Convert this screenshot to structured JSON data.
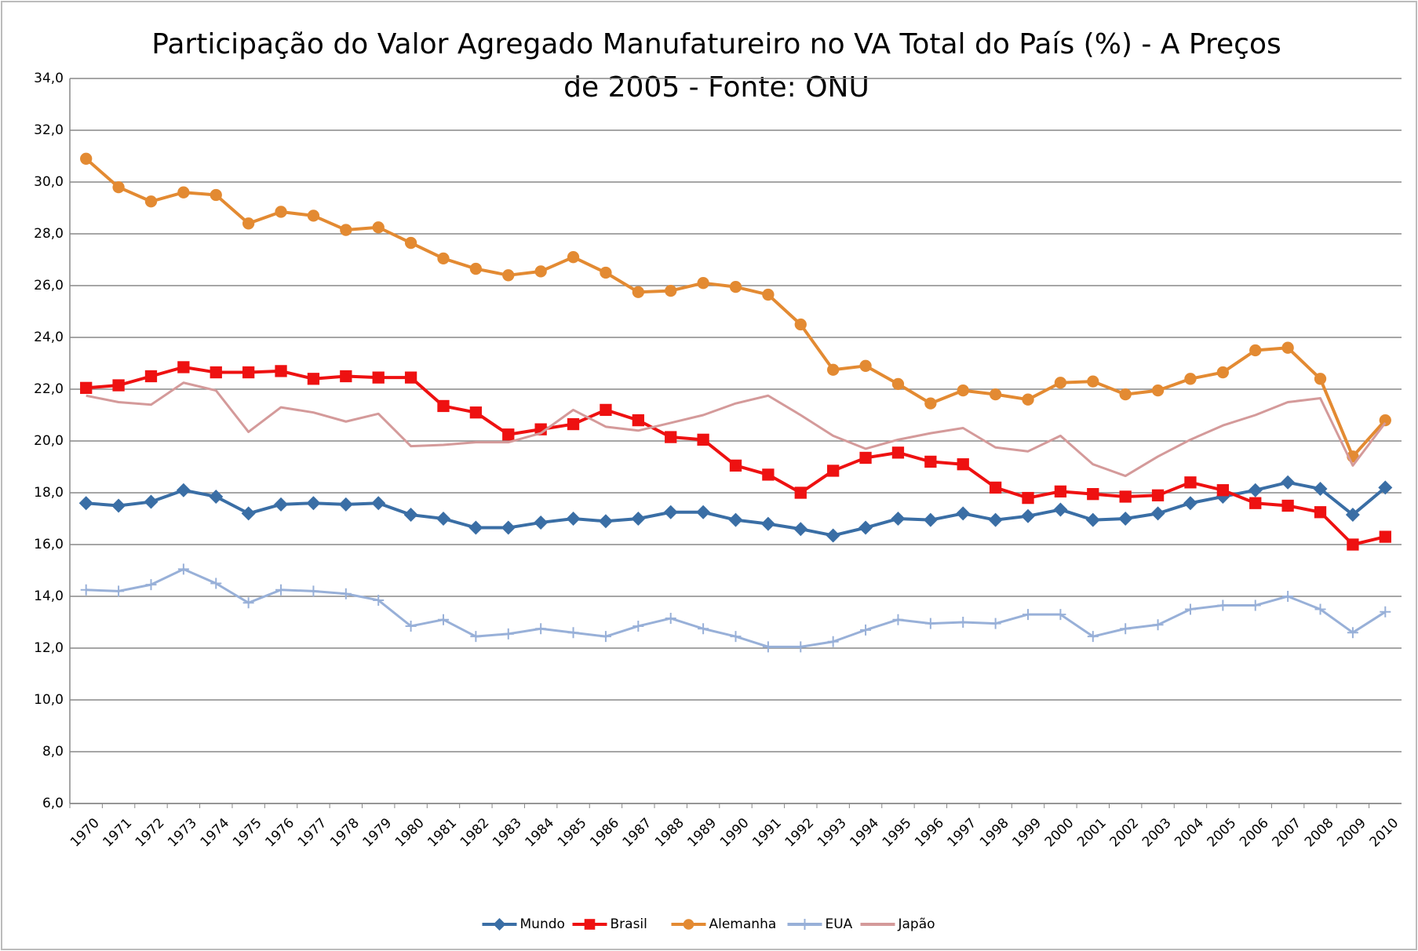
{
  "chart_data": {
    "type": "line",
    "title": [
      "Participação do Valor Agregado Manufatureiro no VA Total do País (%) - A Preços",
      "de 2005 - Fonte: ONU"
    ],
    "categories": [
      "1970",
      "1971",
      "1972",
      "1973",
      "1974",
      "1975",
      "1976",
      "1977",
      "1978",
      "1979",
      "1980",
      "1981",
      "1982",
      "1983",
      "1984",
      "1985",
      "1986",
      "1987",
      "1988",
      "1989",
      "1990",
      "1991",
      "1992",
      "1993",
      "1994",
      "1995",
      "1996",
      "1997",
      "1998",
      "1999",
      "2000",
      "2001",
      "2002",
      "2003",
      "2004",
      "2005",
      "2006",
      "2007",
      "2008",
      "2009",
      "2010"
    ],
    "series": [
      {
        "name": "Mundo",
        "color": "#3a6ea5",
        "marker": "diamond",
        "values": [
          17.6,
          17.5,
          17.65,
          18.1,
          17.85,
          17.2,
          17.55,
          17.6,
          17.55,
          17.6,
          17.15,
          17.0,
          16.65,
          16.65,
          16.85,
          17.0,
          16.9,
          17.0,
          17.25,
          17.25,
          16.95,
          16.8,
          16.6,
          16.35,
          16.65,
          17.0,
          16.95,
          17.2,
          16.95,
          17.1,
          17.35,
          16.95,
          17.0,
          17.2,
          17.6,
          17.85,
          18.1,
          18.4,
          18.15,
          17.15,
          18.2
        ]
      },
      {
        "name": "Brasil",
        "color": "#ee1111",
        "marker": "square",
        "values": [
          22.05,
          22.15,
          22.5,
          22.85,
          22.65,
          22.65,
          22.7,
          22.4,
          22.5,
          22.45,
          22.45,
          21.35,
          21.1,
          20.25,
          20.45,
          20.65,
          21.2,
          20.8,
          20.15,
          20.05,
          19.05,
          18.7,
          18.0,
          18.85,
          19.35,
          19.55,
          19.2,
          19.1,
          18.2,
          17.8,
          18.05,
          17.95,
          17.85,
          17.9,
          18.4,
          18.1,
          17.6,
          17.5,
          17.25,
          16.0,
          16.3
        ]
      },
      {
        "name": "Alemanha",
        "color": "#e38a32",
        "marker": "circle",
        "values": [
          30.9,
          29.8,
          29.25,
          29.6,
          29.5,
          28.4,
          28.85,
          28.7,
          28.15,
          28.25,
          27.65,
          27.05,
          26.65,
          26.4,
          26.55,
          27.1,
          26.5,
          25.75,
          25.8,
          26.1,
          25.95,
          25.65,
          24.5,
          22.75,
          22.9,
          22.2,
          21.45,
          21.95,
          21.8,
          21.6,
          22.25,
          22.3,
          21.8,
          21.95,
          22.4,
          22.65,
          23.5,
          23.6,
          22.4,
          19.4,
          20.8
        ]
      },
      {
        "name": "EUA",
        "color": "#98b0d8",
        "marker": "plus",
        "values": [
          14.25,
          14.2,
          14.45,
          15.05,
          14.5,
          13.75,
          14.25,
          14.2,
          14.1,
          13.85,
          12.85,
          13.1,
          12.45,
          12.55,
          12.75,
          12.6,
          12.45,
          12.85,
          13.15,
          12.75,
          12.45,
          12.05,
          12.05,
          12.25,
          12.7,
          13.1,
          12.95,
          13.0,
          12.95,
          13.3,
          13.3,
          12.45,
          12.75,
          12.9,
          13.5,
          13.65,
          13.65,
          14.0,
          13.5,
          12.6,
          13.4
        ]
      },
      {
        "name": "Japão",
        "color": "#d49a9a",
        "marker": "none",
        "values": [
          21.75,
          21.5,
          21.4,
          22.25,
          21.95,
          20.35,
          21.3,
          21.1,
          20.75,
          21.05,
          19.8,
          19.85,
          19.95,
          19.95,
          20.3,
          21.2,
          20.55,
          20.4,
          20.7,
          21.0,
          21.45,
          21.75,
          21.0,
          20.2,
          19.7,
          20.05,
          20.3,
          20.5,
          19.75,
          19.6,
          20.2,
          19.1,
          18.65,
          19.4,
          20.05,
          20.6,
          21.0,
          21.5,
          21.65,
          19.05,
          20.7
        ]
      }
    ],
    "ylim": [
      6,
      34
    ],
    "yticks": [
      {
        "value": 6,
        "label": "6,0"
      },
      {
        "value": 8,
        "label": "8,0"
      },
      {
        "value": 10,
        "label": "10,0"
      },
      {
        "value": 12,
        "label": "12,0"
      },
      {
        "value": 14,
        "label": "14,0"
      },
      {
        "value": 16,
        "label": "16,0"
      },
      {
        "value": 18,
        "label": "18,0"
      },
      {
        "value": 20,
        "label": "20,0"
      },
      {
        "value": 22,
        "label": "22,0"
      },
      {
        "value": 24,
        "label": "24,0"
      },
      {
        "value": 26,
        "label": "26,0"
      },
      {
        "value": 28,
        "label": "28,0"
      },
      {
        "value": 30,
        "label": "30,0"
      },
      {
        "value": 32,
        "label": "32,0"
      },
      {
        "value": 34,
        "label": "34,0"
      }
    ],
    "grid": true,
    "legend": "bottom"
  }
}
